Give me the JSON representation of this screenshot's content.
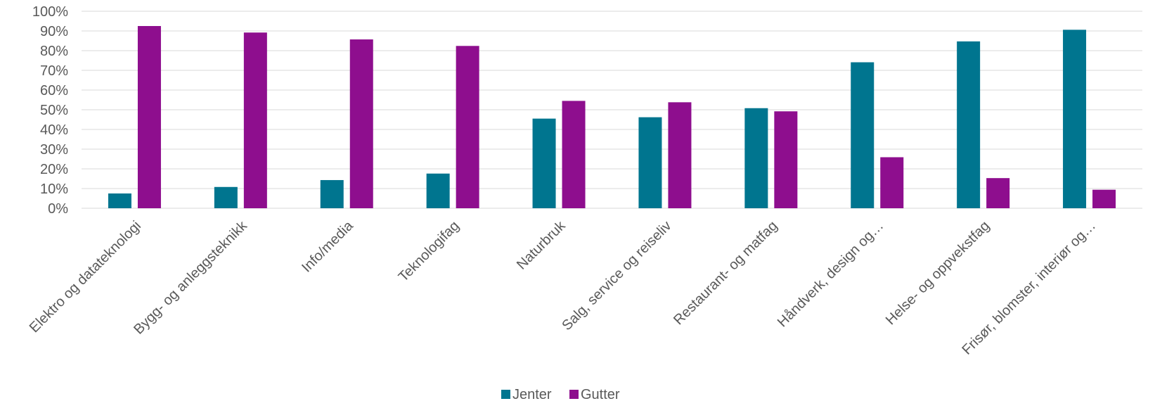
{
  "chart_data": {
    "type": "bar",
    "categories": [
      "Elektro og datateknologi",
      "Bygg- og anleggsteknikk",
      "Info/media",
      "Teknologifag",
      "Naturbruk",
      "Salg, service og reiseliv",
      "Restaurant- og matfag",
      "Håndverk, design og…",
      "Helse- og oppvekstfag",
      "Frisør, blomster, interiør og…"
    ],
    "series": [
      {
        "name": "Jenter",
        "color": "#00758f",
        "values": [
          7.5,
          10.8,
          14.3,
          17.6,
          45.5,
          46.2,
          50.8,
          74.1,
          84.7,
          90.6
        ]
      },
      {
        "name": "Gutter",
        "color": "#8e0e8e",
        "values": [
          92.5,
          89.2,
          85.7,
          82.4,
          54.5,
          53.8,
          49.2,
          25.9,
          15.3,
          9.4
        ]
      }
    ],
    "y_ticks": [
      "0%",
      "10%",
      "20%",
      "30%",
      "40%",
      "50%",
      "60%",
      "70%",
      "80%",
      "90%",
      "100%"
    ],
    "ylim": [
      0,
      100
    ],
    "grid": true,
    "legend_position": "bottom",
    "title": "",
    "xlabel": "",
    "ylabel": ""
  }
}
